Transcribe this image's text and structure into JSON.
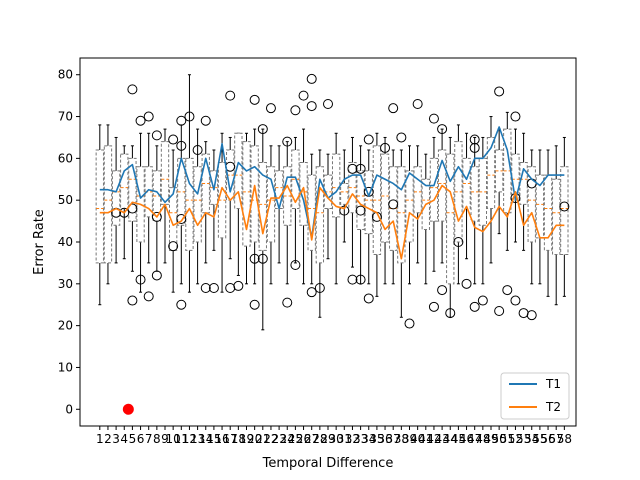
{
  "chart_data": {
    "type": "box",
    "xlabel": "Temporal Difference",
    "ylabel": "Error Rate",
    "ylim": [
      -4,
      84
    ],
    "y_ticks": [
      0,
      10,
      20,
      30,
      40,
      50,
      60,
      70,
      80
    ],
    "x_min": -1.43,
    "x_max": 59.43,
    "categories": [
      "1",
      "2",
      "3",
      "4",
      "5",
      "6",
      "7",
      "8",
      "9",
      "10",
      "11",
      "12",
      "13",
      "14",
      "15",
      "16",
      "17",
      "18",
      "19",
      "20",
      "21",
      "22",
      "23",
      "24",
      "25",
      "26",
      "27",
      "28",
      "29",
      "30",
      "31",
      "32",
      "33",
      "34",
      "35",
      "36",
      "37",
      "38",
      "39",
      "40",
      "41",
      "42",
      "43",
      "44",
      "45",
      "46",
      "47",
      "48",
      "49",
      "50",
      "51",
      "52",
      "53",
      "54",
      "55",
      "56",
      "57",
      "58"
    ],
    "boxes": {
      "q1": [
        35,
        35,
        44,
        48,
        45,
        40,
        46,
        45,
        49,
        38,
        44,
        38,
        40,
        47,
        49,
        41,
        50,
        48,
        39,
        40,
        38,
        40,
        48,
        44,
        48,
        44,
        38,
        35,
        48,
        46,
        49,
        47,
        43,
        42,
        37,
        40,
        38,
        35,
        40,
        47,
        43,
        45,
        45,
        30,
        40,
        48,
        45,
        44,
        48,
        52,
        47,
        50,
        49,
        40,
        41,
        38,
        37,
        37
      ],
      "q3": [
        62,
        63,
        57,
        61,
        60,
        58,
        58,
        57,
        64,
        53,
        60,
        60,
        58,
        61,
        57,
        59,
        62,
        66,
        64,
        63,
        59,
        58,
        57,
        58,
        62,
        59,
        56,
        58,
        56,
        61,
        54,
        59,
        57,
        57,
        63,
        61,
        58,
        58,
        57,
        58,
        55,
        60,
        62,
        61,
        64,
        60,
        58,
        60,
        65,
        62,
        67,
        61,
        59,
        58,
        56,
        56,
        55,
        58
      ],
      "median": [
        48,
        50,
        52,
        53,
        55,
        51,
        52,
        51,
        55,
        47,
        52,
        50,
        50,
        54,
        53,
        50,
        56,
        56,
        52,
        50,
        49,
        50,
        53,
        51,
        55,
        52,
        48,
        47,
        52,
        53,
        52,
        53,
        51,
        50,
        50,
        51,
        48,
        47,
        50,
        52,
        50,
        53,
        54,
        47,
        52,
        54,
        52,
        52,
        56,
        57,
        57,
        55,
        55,
        50,
        49,
        48,
        47,
        48
      ],
      "lo": [
        25,
        30,
        35,
        36,
        33,
        28,
        35,
        33,
        35,
        28,
        30,
        28,
        30,
        35,
        38,
        28,
        36,
        32,
        30,
        30,
        19,
        30,
        35,
        30,
        35,
        30,
        30,
        22,
        36,
        30,
        40,
        34,
        30,
        30,
        27,
        30,
        30,
        22,
        30,
        35,
        30,
        33,
        35,
        22,
        30,
        36,
        30,
        30,
        35,
        42,
        38,
        40,
        38,
        30,
        30,
        27,
        25,
        27
      ],
      "hi": [
        68,
        68,
        65,
        63,
        63,
        66,
        66,
        63,
        67,
        62,
        68,
        80,
        67,
        64,
        62,
        66,
        65,
        66,
        66,
        67,
        67,
        63,
        63,
        64,
        65,
        67,
        61,
        62,
        61,
        66,
        62,
        65,
        63,
        62,
        66,
        65,
        62,
        62,
        63,
        63,
        61,
        65,
        67,
        65,
        68,
        66,
        65,
        65,
        70,
        67,
        71,
        67,
        66,
        62,
        62,
        62,
        63,
        65
      ],
      "outliers": [
        [
          3,
          47
        ],
        [
          4,
          47
        ],
        [
          5,
          76.5
        ],
        [
          5,
          48
        ],
        [
          5,
          26
        ],
        [
          6,
          69
        ],
        [
          6,
          31
        ],
        [
          7,
          70
        ],
        [
          7,
          27
        ],
        [
          8,
          65.5
        ],
        [
          8,
          46
        ],
        [
          8,
          32
        ],
        [
          10,
          64.5
        ],
        [
          10,
          39
        ],
        [
          11,
          69
        ],
        [
          11,
          63
        ],
        [
          11,
          45.5
        ],
        [
          11,
          25
        ],
        [
          12,
          70
        ],
        [
          13,
          62
        ],
        [
          14,
          69
        ],
        [
          14,
          29
        ],
        [
          15,
          29
        ],
        [
          17,
          75
        ],
        [
          17,
          58
        ],
        [
          17,
          29
        ],
        [
          18,
          29.5
        ],
        [
          20,
          74
        ],
        [
          20,
          25
        ],
        [
          20,
          36
        ],
        [
          21,
          67
        ],
        [
          21,
          36
        ],
        [
          22,
          72
        ],
        [
          24,
          64
        ],
        [
          24,
          25.5
        ],
        [
          25,
          71.5
        ],
        [
          25,
          34.5
        ],
        [
          26,
          75
        ],
        [
          27,
          79
        ],
        [
          27,
          72.5
        ],
        [
          27,
          28
        ],
        [
          28,
          29
        ],
        [
          29,
          73
        ],
        [
          31,
          47.5
        ],
        [
          32,
          57.5
        ],
        [
          32,
          31
        ],
        [
          33,
          57.5
        ],
        [
          33,
          47.5
        ],
        [
          33,
          31
        ],
        [
          34,
          64.5
        ],
        [
          34,
          52
        ],
        [
          34,
          26.5
        ],
        [
          35,
          46
        ],
        [
          36,
          62.5
        ],
        [
          37,
          72
        ],
        [
          37,
          49
        ],
        [
          38,
          65
        ],
        [
          39,
          20.5
        ],
        [
          40,
          73
        ],
        [
          42,
          69.5
        ],
        [
          42,
          24.5
        ],
        [
          43,
          67
        ],
        [
          43,
          28.5
        ],
        [
          44,
          23
        ],
        [
          45,
          40
        ],
        [
          46,
          30
        ],
        [
          47,
          64.5
        ],
        [
          47,
          62.5
        ],
        [
          47,
          24.5
        ],
        [
          48,
          26
        ],
        [
          50,
          76
        ],
        [
          50,
          23.5
        ],
        [
          51,
          28.5
        ],
        [
          52,
          70
        ],
        [
          52,
          50.5
        ],
        [
          52,
          26
        ],
        [
          53,
          23
        ],
        [
          54,
          54
        ],
        [
          54,
          22.5
        ],
        [
          58,
          48.5
        ]
      ]
    },
    "series": [
      {
        "name": "T1",
        "color": "#1f77b4",
        "values": [
          52.5,
          52.5,
          52,
          57,
          58.5,
          50.5,
          52.5,
          52,
          49.5,
          51.5,
          60,
          54,
          51.5,
          60,
          52.5,
          63.5,
          52,
          59,
          57,
          58,
          56,
          55,
          48,
          55.5,
          55.5,
          50,
          41,
          55,
          50.5,
          52,
          55,
          56,
          56,
          51,
          56,
          55,
          54,
          52.5,
          56.5,
          55,
          53.5,
          53.5,
          59.5,
          54.5,
          58,
          55,
          60,
          60,
          62.5,
          67.5,
          62,
          50,
          57.5,
          55,
          53.5,
          56,
          56,
          56
        ]
      },
      {
        "name": "T2",
        "color": "#ff7f0e",
        "values": [
          47,
          47,
          48,
          47,
          49.5,
          49,
          48,
          46,
          49,
          44,
          45,
          48,
          44,
          47,
          46,
          53,
          50,
          52,
          43,
          53.5,
          42,
          50.5,
          50.5,
          53.5,
          49.5,
          53,
          40.5,
          53,
          50.5,
          48.5,
          48,
          51.5,
          49,
          48,
          47,
          43,
          45,
          36,
          47,
          45.5,
          49,
          50,
          53.5,
          52,
          45,
          48.5,
          43.5,
          42.5,
          45,
          48.5,
          46,
          52,
          44,
          47,
          41,
          41,
          44,
          44
        ]
      }
    ],
    "extra_points": [
      {
        "x": 4.5,
        "y": 0,
        "color": "#ff0000"
      }
    ],
    "legend": {
      "position": "lower-right",
      "entries": [
        "T1",
        "T2"
      ]
    }
  }
}
